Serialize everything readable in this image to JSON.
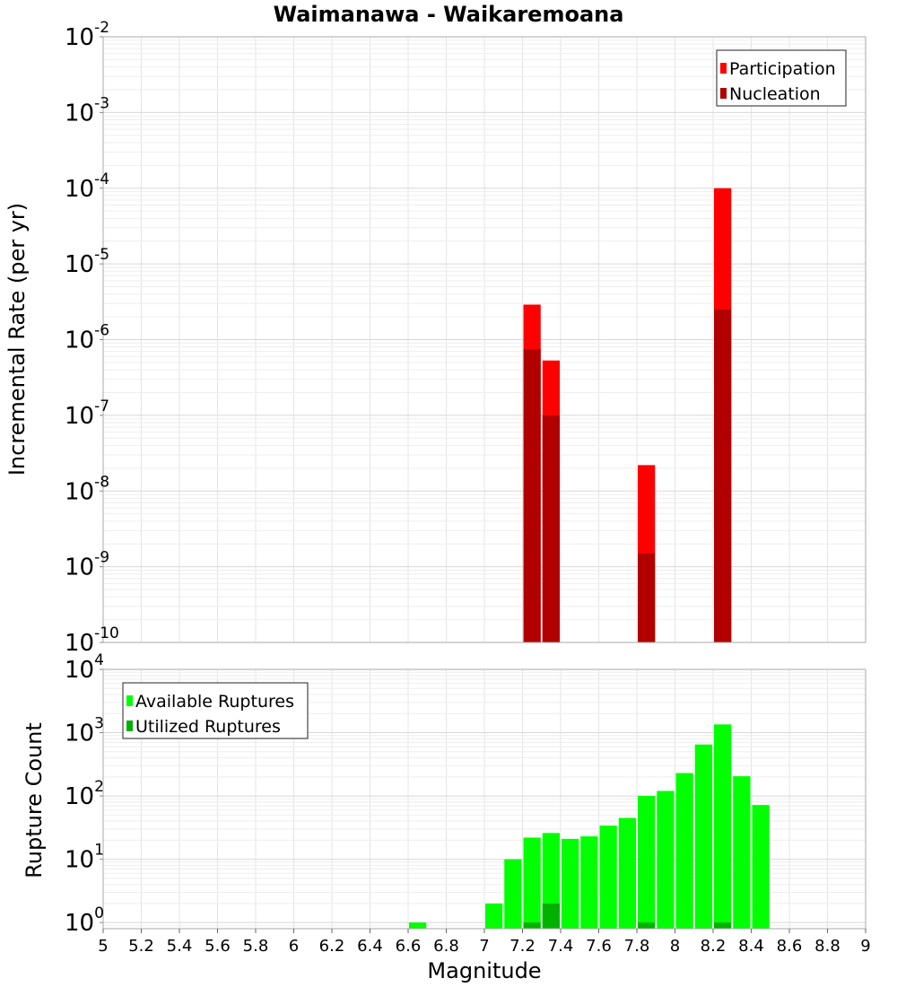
{
  "chart_data": [
    {
      "type": "bar",
      "title": "Waimanawa - Waikaremoana",
      "xlabel": "Magnitude",
      "ylabel": "Incremental Rate (per yr)",
      "yscale": "log",
      "ylim": [
        1e-10,
        0.01
      ],
      "xlim": [
        5,
        9
      ],
      "grid": true,
      "legend_position": "top-right",
      "bin_width": 0.1,
      "ytick_labels": [
        {
          "base": "10",
          "exp": "-2"
        },
        {
          "base": "10",
          "exp": "-3"
        },
        {
          "base": "10",
          "exp": "-4"
        },
        {
          "base": "10",
          "exp": "-5"
        },
        {
          "base": "10",
          "exp": "-6"
        },
        {
          "base": "10",
          "exp": "-7"
        },
        {
          "base": "10",
          "exp": "-8"
        },
        {
          "base": "10",
          "exp": "-9"
        },
        {
          "base": "10",
          "exp": "-10"
        }
      ],
      "series": [
        {
          "name": "Participation",
          "color": "#ff0000",
          "x": [
            7.25,
            7.35,
            7.85,
            8.25
          ],
          "values": [
            2.9e-06,
            5.3e-07,
            2.2e-08,
            0.0001
          ]
        },
        {
          "name": "Nucleation",
          "color": "#b20000",
          "x": [
            7.25,
            7.35,
            7.85,
            8.25
          ],
          "values": [
            7.5e-07,
            1e-07,
            1.5e-09,
            2.5e-06
          ]
        }
      ]
    },
    {
      "type": "bar",
      "xlabel": "Magnitude",
      "ylabel": "Rupture Count",
      "yscale": "log",
      "ylim": [
        0.8,
        10000
      ],
      "xlim": [
        5,
        9
      ],
      "grid": true,
      "legend_position": "top-left",
      "bin_width": 0.1,
      "xtick_labels": [
        "5",
        "5.2",
        "5.4",
        "5.6",
        "5.8",
        "6",
        "6.2",
        "6.4",
        "6.6",
        "6.8",
        "7",
        "7.2",
        "7.4",
        "7.6",
        "7.8",
        "8",
        "8.2",
        "8.4",
        "8.6",
        "8.8",
        "9"
      ],
      "ytick_labels": [
        {
          "base": "10",
          "exp": "4"
        },
        {
          "base": "10",
          "exp": "3"
        },
        {
          "base": "10",
          "exp": "2"
        },
        {
          "base": "10",
          "exp": "1"
        },
        {
          "base": "10",
          "exp": "0"
        }
      ],
      "series": [
        {
          "name": "Available Ruptures",
          "color": "#00ff00",
          "x": [
            6.65,
            7.05,
            7.15,
            7.25,
            7.35,
            7.45,
            7.55,
            7.65,
            7.75,
            7.85,
            7.95,
            8.05,
            8.15,
            8.25,
            8.35,
            8.45
          ],
          "values": [
            1,
            2,
            10,
            22,
            26,
            21,
            23,
            34,
            45,
            100,
            120,
            230,
            650,
            1350,
            205,
            72
          ]
        },
        {
          "name": "Utilized Ruptures",
          "color": "#00b200",
          "x": [
            7.25,
            7.35,
            7.85,
            8.25
          ],
          "values": [
            1,
            2,
            1,
            1
          ]
        }
      ]
    }
  ]
}
